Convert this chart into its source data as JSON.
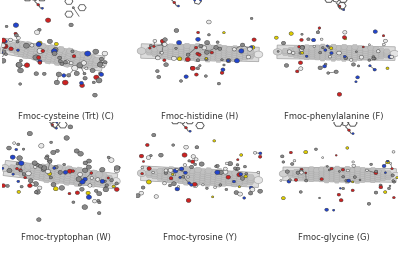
{
  "background_color": "#ffffff",
  "panels": [
    {
      "label": "Fmoc-cysteine (Trt) (C)",
      "row": 0,
      "col": 0
    },
    {
      "label": "Fmoc-histidine (H)",
      "row": 0,
      "col": 1
    },
    {
      "label": "Fmoc-phenylalanine (F)",
      "row": 0,
      "col": 2
    },
    {
      "label": "Fmoc-tryptophan (W)",
      "row": 1,
      "col": 0
    },
    {
      "label": "Fmoc-tyrosine (Y)",
      "row": 1,
      "col": 1
    },
    {
      "label": "Fmoc-glycine (G)",
      "row": 1,
      "col": 2
    }
  ],
  "label_fontsize": 6.0,
  "label_color": "#333333",
  "figsize": [
    4.0,
    2.55
  ],
  "dpi": 100,
  "nrows": 2,
  "ncols": 3
}
